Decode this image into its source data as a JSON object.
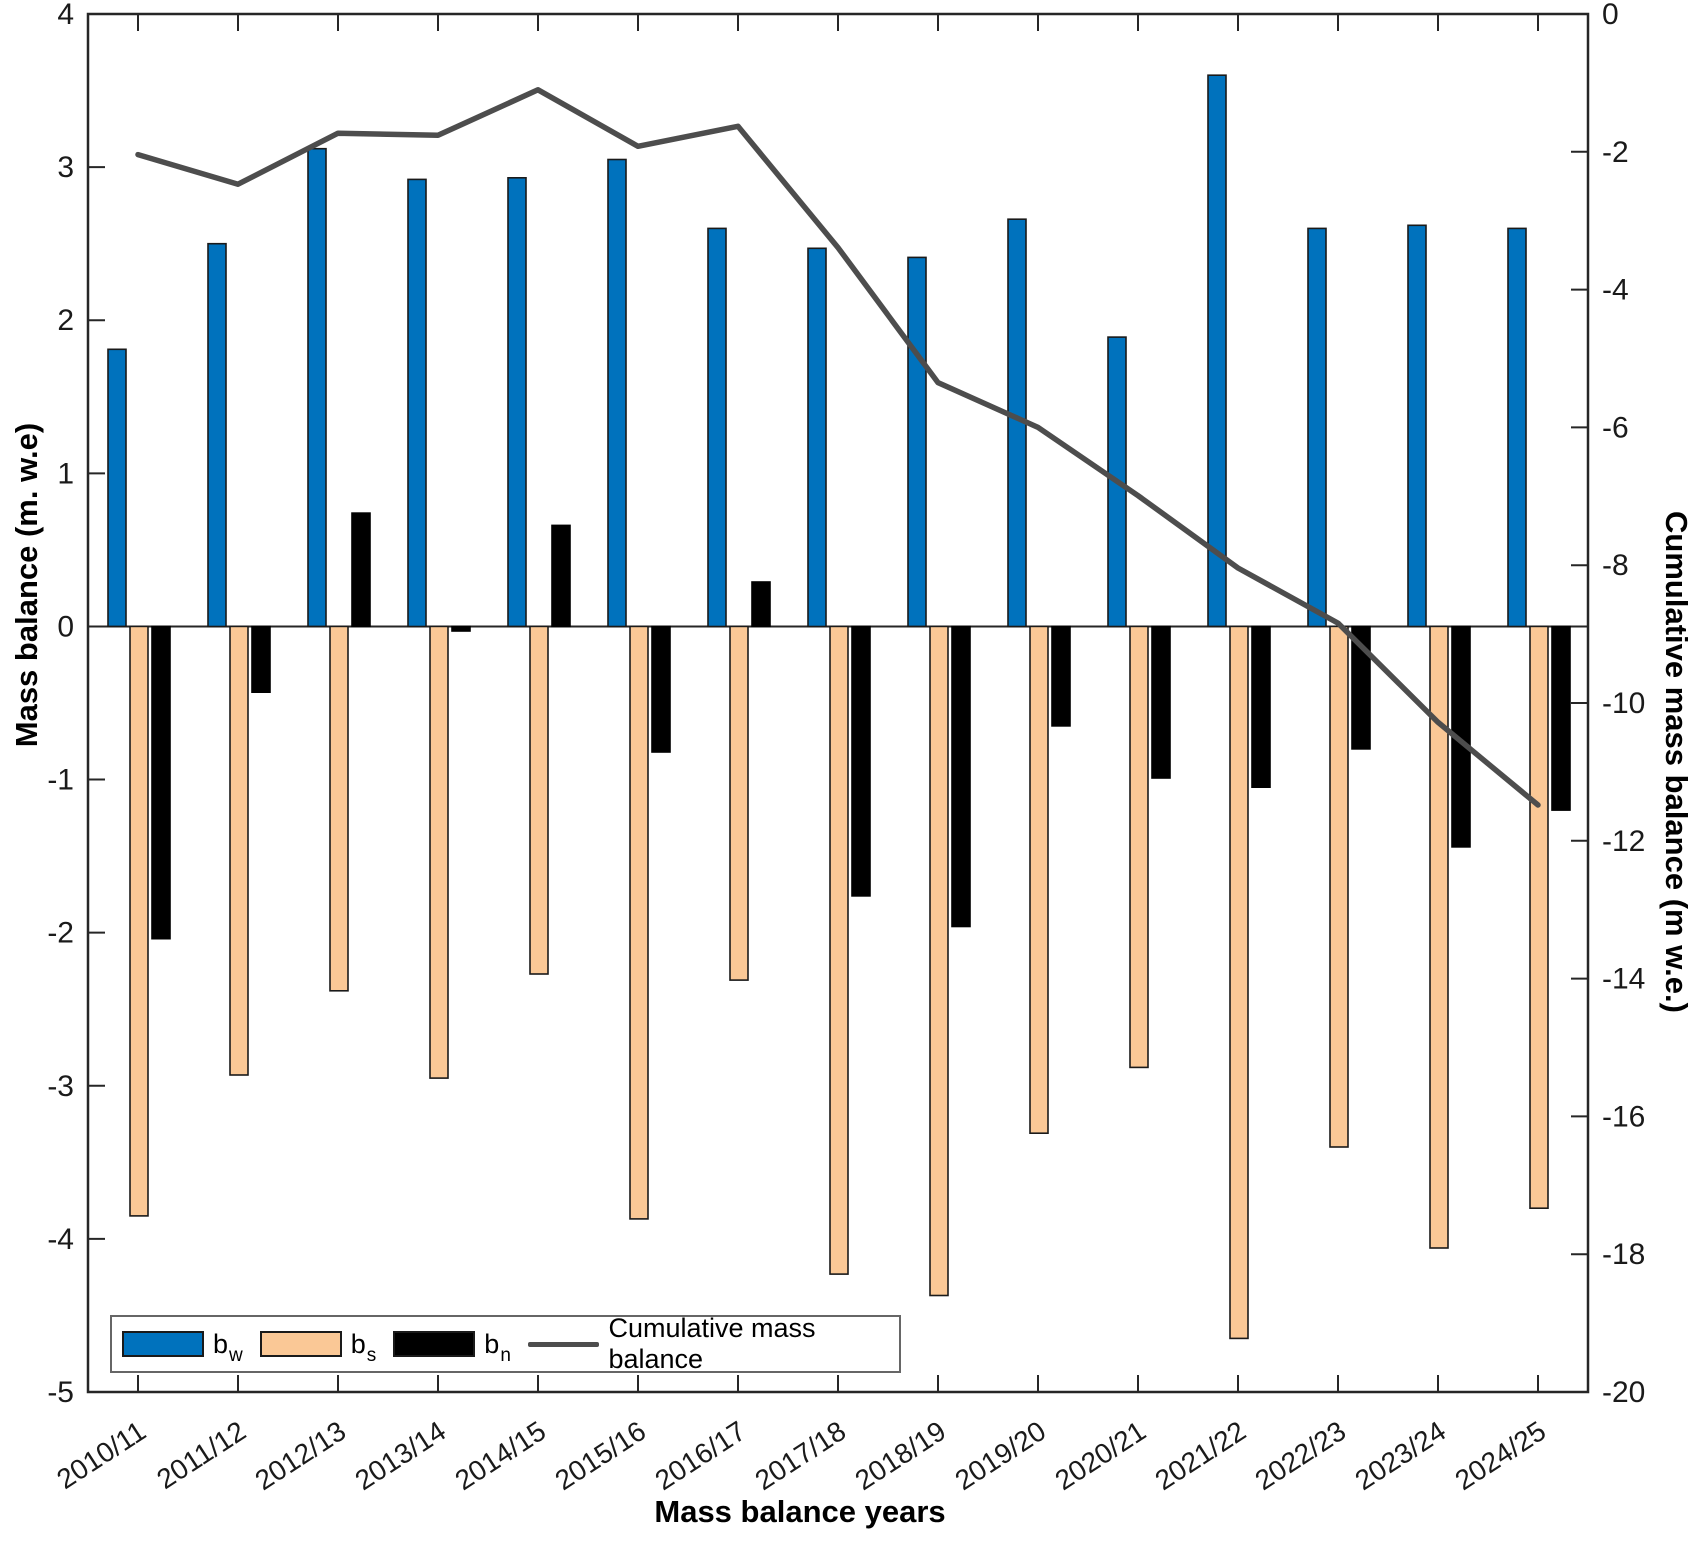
{
  "figure": {
    "left_axis_label": "Mass balance (m. w.e)",
    "right_axis_label": "Cumulative mass balance (m w.e.)",
    "x_axis_label": "Mass balance years"
  },
  "legend": {
    "items": [
      {
        "label": "b",
        "sub": "w",
        "swatch": "#0072BD",
        "kind": "bar"
      },
      {
        "label": "b",
        "sub": "s",
        "swatch": "#FAC896",
        "kind": "bar"
      },
      {
        "label": "b",
        "sub": "n",
        "swatch": "#000000",
        "kind": "bar"
      },
      {
        "label": "Cumulative mass balance",
        "sub": "",
        "swatch": "#4D4D4D",
        "kind": "line"
      }
    ]
  },
  "chart_data": {
    "type": "bar+line",
    "categories": [
      "2010/11",
      "2011/12",
      "2012/13",
      "2013/14",
      "2014/15",
      "2015/16",
      "2016/17",
      "2017/18",
      "2018/19",
      "2019/20",
      "2020/21",
      "2021/22",
      "2022/23",
      "2023/24",
      "2024/25"
    ],
    "series": [
      {
        "name": "bw",
        "type": "bar",
        "axis": "left",
        "color": "#0072BD",
        "edge": "#1a1a1a",
        "values": [
          1.81,
          2.5,
          3.12,
          2.92,
          2.93,
          3.05,
          2.6,
          2.47,
          2.41,
          2.66,
          1.89,
          3.6,
          2.6,
          2.62,
          2.6
        ]
      },
      {
        "name": "bs",
        "type": "bar",
        "axis": "left",
        "color": "#FAC896",
        "edge": "#1a1a1a",
        "values": [
          -3.85,
          -2.93,
          -2.38,
          -2.95,
          -2.27,
          -3.87,
          -2.31,
          -4.23,
          -4.37,
          -3.31,
          -2.88,
          -4.65,
          -3.4,
          -4.06,
          -3.8
        ]
      },
      {
        "name": "bn",
        "type": "bar",
        "axis": "left",
        "color": "#000000",
        "edge": "#000000",
        "values": [
          -2.04,
          -0.43,
          0.74,
          -0.03,
          0.66,
          -0.82,
          0.29,
          -1.76,
          -1.96,
          -0.65,
          -0.99,
          -1.05,
          -0.8,
          -1.44,
          -1.2
        ]
      },
      {
        "name": "Cumulative mass balance",
        "type": "line",
        "axis": "right",
        "color": "#4D4D4D",
        "values": [
          -2.04,
          -2.47,
          -1.73,
          -1.76,
          -1.1,
          -1.92,
          -1.63,
          -3.39,
          -5.35,
          -6.0,
          -6.99,
          -8.04,
          -8.84,
          -10.28,
          -11.48
        ]
      }
    ],
    "title": "",
    "xlabel": "Mass balance years",
    "left_axis": {
      "label": "Mass balance (m. w.e)",
      "min": -5,
      "max": 4,
      "ticks": [
        4,
        3,
        2,
        1,
        0,
        -1,
        -2,
        -3,
        -4,
        -5
      ]
    },
    "right_axis": {
      "label": "Cumulative mass balance (m w.e.)",
      "min": -20,
      "max": 0,
      "ticks": [
        0,
        -2,
        -4,
        -6,
        -8,
        -10,
        -12,
        -14,
        -16,
        -18,
        -20
      ]
    },
    "grid": false,
    "legend_position": "bottom-left-inside"
  }
}
